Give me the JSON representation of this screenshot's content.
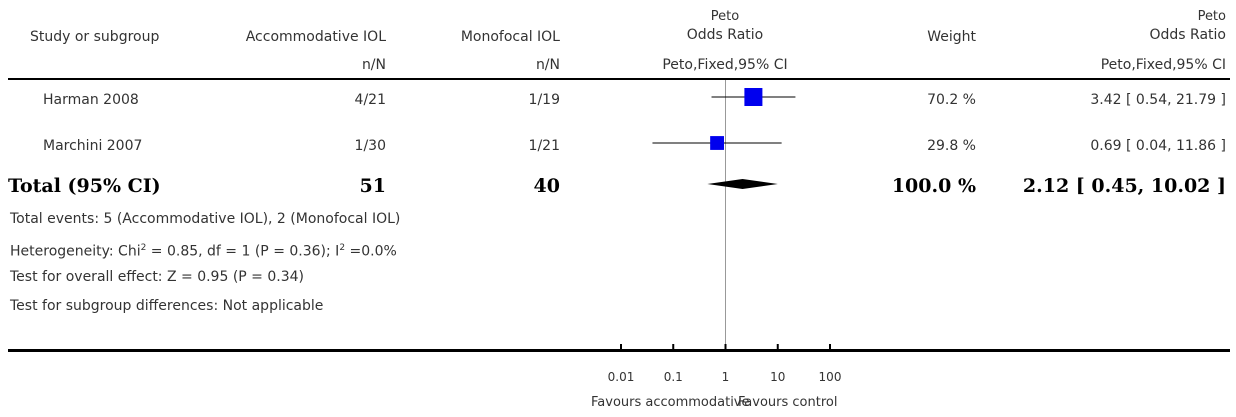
{
  "header": {
    "study": "Study or subgroup",
    "treatment": "Accommodative IOL",
    "control": "Monofocal IOL",
    "effect_line1": "Peto",
    "effect_line2": "Odds Ratio",
    "weight": "Weight",
    "effect2_line1": "Peto",
    "effect2_line2": "Odds Ratio",
    "treatment_sub": "n/N",
    "control_sub": "n/N",
    "effect_sub": "Peto,Fixed,95% CI",
    "effect2_sub": "Peto,Fixed,95% CI"
  },
  "studies": [
    {
      "name": "Harman 2008",
      "treatment": "4/21",
      "control": "1/19",
      "weight": "70.2 %",
      "ci_text": "3.42 [ 0.54, 21.79 ]"
    },
    {
      "name": "Marchini 2007",
      "treatment": "1/30",
      "control": "1/21",
      "weight": "29.8 %",
      "ci_text": "0.69 [ 0.04, 11.86 ]"
    }
  ],
  "total": {
    "label": "Total (95% CI)",
    "treatment": "51",
    "control": "40",
    "weight": "100.0 %",
    "ci_text": "2.12 [ 0.45, 10.02 ]"
  },
  "notes": {
    "events": "Total events: 5 (Accommodative IOL), 2 (Monofocal IOL)",
    "heterogeneity_pre": "Heterogeneity: Chi",
    "heterogeneity_sup1": "2",
    "heterogeneity_mid": " = 0.85, df = 1 (P = 0.36); I",
    "heterogeneity_sup2": "2",
    "heterogeneity_post": " =0.0%",
    "overall": "Test for overall effect: Z = 0.95 (P = 0.34)",
    "subgroup": "Test for subgroup differences: Not applicable"
  },
  "axis": {
    "favours_left": "Favours accommodative",
    "favours_right": "Favours control"
  },
  "colors": {
    "square": "#0000ee",
    "diamond": "#000000",
    "line": "#000000",
    "null_line": "#999999"
  },
  "chart_data": {
    "type": "forest",
    "scale": "log",
    "xlim": [
      0.01,
      100
    ],
    "ticks": [
      0.01,
      0.1,
      1,
      10,
      100
    ],
    "tick_labels": [
      "0.01",
      "0.1",
      "1",
      "10",
      "100"
    ],
    "studies": [
      {
        "name": "Harman 2008",
        "estimate": 3.42,
        "lower": 0.54,
        "upper": 21.79,
        "weight": 70.2
      },
      {
        "name": "Marchini 2007",
        "estimate": 0.69,
        "lower": 0.04,
        "upper": 11.86,
        "weight": 29.8
      }
    ],
    "pooled": {
      "estimate": 2.12,
      "lower": 0.45,
      "upper": 10.02
    }
  }
}
